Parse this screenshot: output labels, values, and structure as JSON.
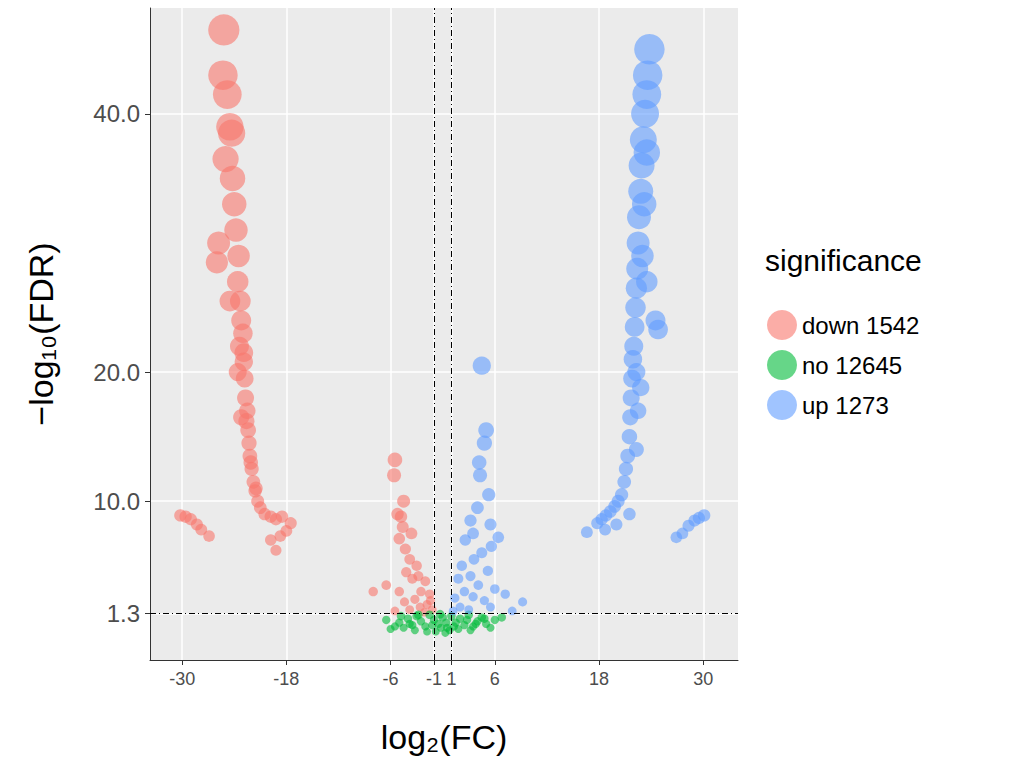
{
  "chart_data": {
    "type": "scatter",
    "x_label": "log₂(FC)",
    "y_label": "−log₁₀(FDR)",
    "legend_title": "significance",
    "legend": "right",
    "grid": true,
    "xlim": [
      -33.7,
      34
    ],
    "ylim": [
      -2.3,
      48.2
    ],
    "xticks": [
      -30,
      -18,
      -6,
      -1,
      1,
      6,
      18,
      30
    ],
    "yticks": [
      1.3,
      {
        "value": 10,
        "label": "10.0"
      },
      {
        "value": 20,
        "label": "20.0"
      },
      {
        "value": 40,
        "label": "40.0"
      }
    ],
    "reference_lines": {
      "x": [
        -1,
        1
      ],
      "y": [
        1.3
      ]
    },
    "series": [
      {
        "name": "down 1542",
        "color": "#F8766D",
        "values": [
          [
            -25.2,
            46.5
          ],
          [
            -25.3,
            43
          ],
          [
            -24.8,
            41.5
          ],
          [
            -24.5,
            39
          ],
          [
            -24.3,
            38.5
          ],
          [
            -25,
            36.5
          ],
          [
            -24.2,
            35
          ],
          [
            -24,
            33
          ],
          [
            -23.8,
            31
          ],
          [
            -25.8,
            30
          ],
          [
            -26,
            28.5
          ],
          [
            -23.5,
            29
          ],
          [
            -23.6,
            27
          ],
          [
            -23.3,
            25.5
          ],
          [
            -23.2,
            24
          ],
          [
            -24.5,
            25.5
          ],
          [
            -23,
            23
          ],
          [
            -22.9,
            21.5
          ],
          [
            -23.6,
            20
          ],
          [
            -22.8,
            19.5
          ],
          [
            -22.7,
            18
          ],
          [
            -22.5,
            17
          ],
          [
            -23.2,
            16.5
          ],
          [
            -22.4,
            15.5
          ],
          [
            -22.3,
            14.5
          ],
          [
            -22.2,
            13.5
          ],
          [
            -22,
            12.5
          ],
          [
            -21.8,
            11.5
          ],
          [
            -21.6,
            10.8
          ],
          [
            -21.3,
            10
          ],
          [
            -21,
            9.5
          ],
          [
            -20.5,
            9
          ],
          [
            -19.8,
            8.8
          ],
          [
            -19.2,
            8.6
          ],
          [
            -18.5,
            8.8
          ],
          [
            -17.5,
            8.3
          ],
          [
            -18,
            7.7
          ],
          [
            -18.7,
            7.3
          ],
          [
            -19.8,
            7
          ],
          [
            -19.2,
            6.2
          ],
          [
            -23.4,
            22
          ],
          [
            -22.9,
            20.8
          ],
          [
            -22.6,
            16.2
          ],
          [
            -22.1,
            13
          ],
          [
            -21.5,
            11
          ],
          [
            -30.2,
            8.9
          ],
          [
            -29.6,
            8.8
          ],
          [
            -29,
            8.6
          ],
          [
            -28.3,
            8.2
          ],
          [
            -27.8,
            7.8
          ],
          [
            -26.9,
            7.3
          ],
          [
            -5.5,
            13.2
          ],
          [
            -5.6,
            12
          ],
          [
            -4.5,
            10
          ],
          [
            -5.2,
            9
          ],
          [
            -4.8,
            8.8
          ],
          [
            -4.6,
            8
          ],
          [
            -3.6,
            7.5
          ],
          [
            -5,
            7.1
          ],
          [
            -4.3,
            6.3
          ],
          [
            -3.8,
            5.5
          ],
          [
            -3,
            5
          ],
          [
            -4.2,
            4.5
          ],
          [
            -3.5,
            4
          ],
          [
            -2.8,
            4.2
          ],
          [
            -2,
            3.8
          ],
          [
            -6.5,
            3.5
          ],
          [
            -8,
            3
          ],
          [
            -5,
            3
          ],
          [
            -2.5,
            3
          ],
          [
            -1.5,
            2.8
          ],
          [
            -3.2,
            2.4
          ],
          [
            -4.4,
            2.2
          ],
          [
            -1.8,
            2
          ],
          [
            -2.6,
            1.8
          ],
          [
            -1.2,
            1.6
          ],
          [
            -3.8,
            1.6
          ],
          [
            -5.5,
            1.5
          ],
          [
            -2.1,
            1.4
          ],
          [
            -1.4,
            2.3
          ]
        ]
      },
      {
        "name": "no 12645",
        "color": "#00BA38",
        "values": [
          [
            -6,
            0.1
          ],
          [
            -5.5,
            0.3
          ],
          [
            -5,
            0.6
          ],
          [
            -4.5,
            0.2
          ],
          [
            -4,
            0.9
          ],
          [
            -3.5,
            0.4
          ],
          [
            -3,
            1.1
          ],
          [
            -2.5,
            0.7
          ],
          [
            -2,
            0.3
          ],
          [
            -1.5,
            1.2
          ],
          [
            -1,
            0.8
          ],
          [
            -0.5,
            0.5
          ],
          [
            0,
            1
          ],
          [
            0.5,
            0.2
          ],
          [
            1,
            1.1
          ],
          [
            1.5,
            0.6
          ],
          [
            2,
            0.9
          ],
          [
            2.5,
            0.4
          ],
          [
            3,
            1.2
          ],
          [
            3.5,
            0.3
          ],
          [
            4,
            0.7
          ],
          [
            4.5,
            1
          ],
          [
            5,
            0.5
          ],
          [
            5.5,
            0.2
          ],
          [
            6,
            0.8
          ],
          [
            -0.8,
            -0.1
          ],
          [
            0.3,
            -0.2
          ],
          [
            -0.2,
            0.2
          ],
          [
            0.8,
            0
          ],
          [
            -1.8,
            -0.1
          ],
          [
            1.8,
            0.1
          ],
          [
            -3.2,
            0
          ],
          [
            3.2,
            0
          ],
          [
            -4.8,
            1.1
          ],
          [
            4.8,
            0.9
          ],
          [
            -2.8,
            1.2
          ],
          [
            2.8,
            0.8
          ],
          [
            -0.3,
            1.25
          ],
          [
            0.4,
            0.6
          ],
          [
            -1.2,
            0.4
          ],
          [
            1.3,
            0.3
          ],
          [
            -6.5,
            0.8
          ],
          [
            6.8,
            1
          ],
          [
            -3.8,
            0.5
          ],
          [
            3.8,
            0.5
          ]
        ]
      },
      {
        "name": "up 1273",
        "color": "#619CFF",
        "values": [
          [
            23.8,
            45
          ],
          [
            23.6,
            43
          ],
          [
            23.5,
            41.5
          ],
          [
            23.3,
            40
          ],
          [
            23.1,
            38
          ],
          [
            23.5,
            37
          ],
          [
            22.9,
            36
          ],
          [
            22.8,
            34
          ],
          [
            23.2,
            33
          ],
          [
            22.6,
            32
          ],
          [
            22.5,
            30
          ],
          [
            23,
            29
          ],
          [
            22.4,
            28
          ],
          [
            22.3,
            26.5
          ],
          [
            23.5,
            27
          ],
          [
            24.5,
            24
          ],
          [
            24.8,
            23.3
          ],
          [
            22.2,
            25
          ],
          [
            22.1,
            23.5
          ],
          [
            22,
            22
          ],
          [
            21.9,
            21
          ],
          [
            22.3,
            20
          ],
          [
            21.8,
            19.5
          ],
          [
            21.7,
            18
          ],
          [
            22.5,
            17
          ],
          [
            21.6,
            16.5
          ],
          [
            21.5,
            15
          ],
          [
            22.3,
            14
          ],
          [
            21.3,
            13.5
          ],
          [
            21.1,
            12.5
          ],
          [
            20.9,
            11.5
          ],
          [
            20.6,
            10.5
          ],
          [
            20.2,
            10
          ],
          [
            19.8,
            9.6
          ],
          [
            19.3,
            9.2
          ],
          [
            18.8,
            8.9
          ],
          [
            18.3,
            8.6
          ],
          [
            17.8,
            8.3
          ],
          [
            16.6,
            7.6
          ],
          [
            18.7,
            7.8
          ],
          [
            20,
            8.2
          ],
          [
            21.5,
            9
          ],
          [
            22.8,
            18.8
          ],
          [
            30.1,
            8.9
          ],
          [
            29.5,
            8.7
          ],
          [
            29,
            8.5
          ],
          [
            28.3,
            8.1
          ],
          [
            27.6,
            7.5
          ],
          [
            26.9,
            7.2
          ],
          [
            4.5,
            20.5
          ],
          [
            5,
            15.5
          ],
          [
            4.8,
            14.5
          ],
          [
            4.2,
            13
          ],
          [
            4.3,
            12
          ],
          [
            5.3,
            10.5
          ],
          [
            4,
            9.5
          ],
          [
            3.2,
            8.5
          ],
          [
            5.5,
            8.2
          ],
          [
            3.5,
            7.5
          ],
          [
            6.4,
            7.2
          ],
          [
            2.6,
            7
          ],
          [
            5.6,
            6.5
          ],
          [
            4.5,
            6
          ],
          [
            3.6,
            5.5
          ],
          [
            2.2,
            5
          ],
          [
            5.2,
            4.6
          ],
          [
            3.2,
            4.2
          ],
          [
            1.8,
            4
          ],
          [
            4.1,
            3.5
          ],
          [
            6,
            3.2
          ],
          [
            2.5,
            3
          ],
          [
            3.5,
            2.6
          ],
          [
            1.4,
            2.5
          ],
          [
            4.8,
            2.3
          ],
          [
            7.2,
            2.8
          ],
          [
            9.2,
            2.2
          ],
          [
            8,
            1.5
          ],
          [
            2,
            1.8
          ],
          [
            1.2,
            1.5
          ],
          [
            3,
            1.6
          ],
          [
            5.5,
            1.8
          ]
        ]
      }
    ]
  }
}
